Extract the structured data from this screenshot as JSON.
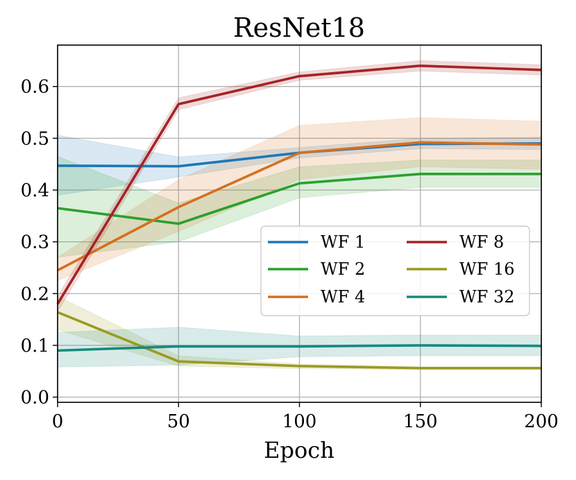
{
  "chart_data": {
    "type": "line",
    "title": "ResNet18",
    "xlabel": "Epoch",
    "ylabel": "",
    "xlim": [
      0,
      200
    ],
    "ylim": [
      -0.01,
      0.68
    ],
    "xticks": [
      0,
      50,
      100,
      150,
      200
    ],
    "xtick_labels": [
      "0",
      "50",
      "100",
      "150",
      "200"
    ],
    "yticks": [
      0.0,
      0.1,
      0.2,
      0.3,
      0.4,
      0.5,
      0.6
    ],
    "ytick_labels": [
      "0.0",
      "0.1",
      "0.2",
      "0.3",
      "0.4",
      "0.5",
      "0.6"
    ],
    "grid": true,
    "legend_position": "center-right",
    "legend_columns": 2,
    "x": [
      0,
      50,
      100,
      150,
      200
    ],
    "series": [
      {
        "name": "WF 1",
        "color": "#1f77b4",
        "values": [
          0.447,
          0.446,
          0.472,
          0.489,
          0.49
        ],
        "lower": [
          0.39,
          0.425,
          0.462,
          0.48,
          0.478
        ],
        "upper": [
          0.506,
          0.464,
          0.482,
          0.5,
          0.502
        ]
      },
      {
        "name": "WF 2",
        "color": "#2ca02c",
        "values": [
          0.365,
          0.335,
          0.413,
          0.431,
          0.431
        ],
        "lower": [
          0.27,
          0.3,
          0.385,
          0.405,
          0.405
        ],
        "upper": [
          0.465,
          0.375,
          0.445,
          0.458,
          0.458
        ]
      },
      {
        "name": "WF 4",
        "color": "#d4701f",
        "values": [
          0.245,
          0.367,
          0.472,
          0.492,
          0.488
        ],
        "lower": [
          0.225,
          0.32,
          0.42,
          0.445,
          0.44
        ],
        "upper": [
          0.27,
          0.42,
          0.525,
          0.54,
          0.533
        ]
      },
      {
        "name": "WF 8",
        "color": "#a52325",
        "values": [
          0.18,
          0.566,
          0.62,
          0.64,
          0.632
        ],
        "lower": [
          0.165,
          0.555,
          0.612,
          0.63,
          0.622
        ],
        "upper": [
          0.195,
          0.578,
          0.628,
          0.65,
          0.642
        ]
      },
      {
        "name": "WF 16",
        "color": "#9a9a22",
        "values": [
          0.164,
          0.069,
          0.06,
          0.056,
          0.056
        ],
        "lower": [
          0.13,
          0.06,
          0.055,
          0.053,
          0.053
        ],
        "upper": [
          0.195,
          0.08,
          0.064,
          0.059,
          0.059
        ]
      },
      {
        "name": "WF 32",
        "color": "#158a7c",
        "values": [
          0.09,
          0.098,
          0.098,
          0.1,
          0.099
        ],
        "lower": [
          0.058,
          0.062,
          0.078,
          0.08,
          0.08
        ],
        "upper": [
          0.125,
          0.135,
          0.118,
          0.12,
          0.12
        ]
      }
    ]
  }
}
